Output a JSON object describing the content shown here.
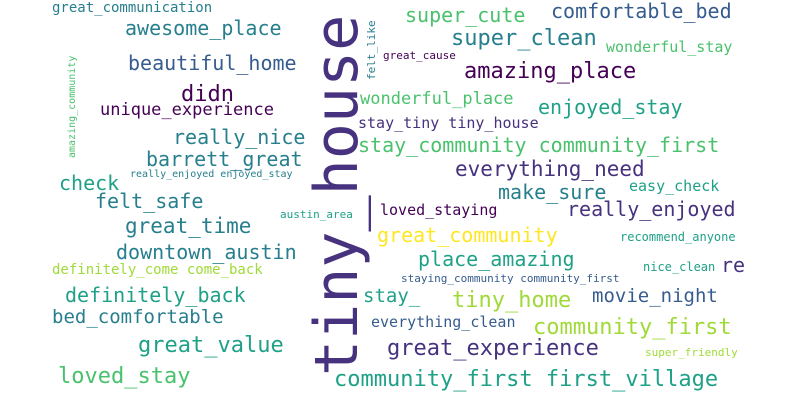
{
  "colors": {
    "background": "#ffffff",
    "palette": [
      "#440154",
      "#46327e",
      "#365c8d",
      "#277f8e",
      "#1fa187",
      "#4ac16d",
      "#a0da39",
      "#fde725"
    ]
  },
  "words": [
    {
      "text": "tiny_house",
      "color": "#46327e",
      "orientation": "vertical"
    },
    {
      "text": "great_communication",
      "color": "#277f8e",
      "orientation": "horizontal"
    },
    {
      "text": "awesome_place",
      "color": "#277f8e",
      "orientation": "horizontal"
    },
    {
      "text": "beautiful_home",
      "color": "#365c8d",
      "orientation": "horizontal"
    },
    {
      "text": "didn",
      "color": "#440154",
      "orientation": "horizontal"
    },
    {
      "text": "unique_experience",
      "color": "#440154",
      "orientation": "horizontal"
    },
    {
      "text": "really_nice",
      "color": "#277f8e",
      "orientation": "horizontal"
    },
    {
      "text": "barrett_great",
      "color": "#277f8e",
      "orientation": "horizontal"
    },
    {
      "text": "check",
      "color": "#1fa187",
      "orientation": "horizontal"
    },
    {
      "text": "felt_safe",
      "color": "#277f8e",
      "orientation": "horizontal"
    },
    {
      "text": "great_time",
      "color": "#277f8e",
      "orientation": "horizontal"
    },
    {
      "text": "downtown_austin",
      "color": "#277f8e",
      "orientation": "horizontal"
    },
    {
      "text": "definitely_come come_back",
      "color": "#a0da39",
      "orientation": "horizontal"
    },
    {
      "text": "definitely_back",
      "color": "#1fa187",
      "orientation": "horizontal"
    },
    {
      "text": "bed_comfortable",
      "color": "#277f8e",
      "orientation": "horizontal"
    },
    {
      "text": "great_value",
      "color": "#1fa187",
      "orientation": "horizontal"
    },
    {
      "text": "loved_stay",
      "color": "#4ac16d",
      "orientation": "horizontal"
    },
    {
      "text": "amazing_community",
      "color": "#4ac16d",
      "orientation": "vertical"
    },
    {
      "text": "super_cute",
      "color": "#4ac16d",
      "orientation": "horizontal"
    },
    {
      "text": "comfortable_bed",
      "color": "#365c8d",
      "orientation": "horizontal"
    },
    {
      "text": "super_clean",
      "color": "#277f8e",
      "orientation": "horizontal"
    },
    {
      "text": "wonderful_stay",
      "color": "#4ac16d",
      "orientation": "horizontal"
    },
    {
      "text": "great_cause",
      "color": "#440154",
      "orientation": "horizontal"
    },
    {
      "text": "felt_like",
      "color": "#277f8e",
      "orientation": "vertical"
    },
    {
      "text": "amazing_place",
      "color": "#440154",
      "orientation": "horizontal"
    },
    {
      "text": "wonderful_place",
      "color": "#4ac16d",
      "orientation": "horizontal"
    },
    {
      "text": "enjoyed_stay",
      "color": "#1fa187",
      "orientation": "horizontal"
    },
    {
      "text": "stay_tiny tiny_house",
      "color": "#46327e",
      "orientation": "horizontal"
    },
    {
      "text": "stay_community community_first",
      "color": "#4ac16d",
      "orientation": "horizontal"
    },
    {
      "text": "really_enjoyed enjoyed_stay",
      "color": "#277f8e",
      "orientation": "horizontal"
    },
    {
      "text": "everything_need",
      "color": "#46327e",
      "orientation": "horizontal"
    },
    {
      "text": "make_sure",
      "color": "#277f8e",
      "orientation": "horizontal"
    },
    {
      "text": "easy_check",
      "color": "#1fa187",
      "orientation": "horizontal"
    },
    {
      "text": "austin_area",
      "color": "#1fa187",
      "orientation": "horizontal"
    },
    {
      "text": "loved_staying",
      "color": "#440154",
      "orientation": "horizontal"
    },
    {
      "text": "really_enjoyed",
      "color": "#46327e",
      "orientation": "horizontal"
    },
    {
      "text": "great_community",
      "color": "#fde725",
      "orientation": "horizontal"
    },
    {
      "text": "recommend_anyone",
      "color": "#1fa187",
      "orientation": "horizontal"
    },
    {
      "text": "place_amazing",
      "color": "#1fa187",
      "orientation": "horizontal"
    },
    {
      "text": "re",
      "color": "#46327e",
      "orientation": "horizontal"
    },
    {
      "text": "nice_clean",
      "color": "#1fa187",
      "orientation": "horizontal"
    },
    {
      "text": "staying_community community_first",
      "color": "#365c8d",
      "orientation": "horizontal"
    },
    {
      "text": "stay_",
      "color": "#1fa187",
      "orientation": "horizontal"
    },
    {
      "text": "tiny_home",
      "color": "#a0da39",
      "orientation": "horizontal"
    },
    {
      "text": "movie_night",
      "color": "#365c8d",
      "orientation": "horizontal"
    },
    {
      "text": "everything_clean",
      "color": "#365c8d",
      "orientation": "horizontal"
    },
    {
      "text": "community_first",
      "color": "#a0da39",
      "orientation": "horizontal"
    },
    {
      "text": "great_experience",
      "color": "#46327e",
      "orientation": "horizontal"
    },
    {
      "text": "super_friendly",
      "color": "#a0da39",
      "orientation": "horizontal"
    },
    {
      "text": "community_first first_village",
      "color": "#1fa187",
      "orientation": "horizontal"
    }
  ]
}
